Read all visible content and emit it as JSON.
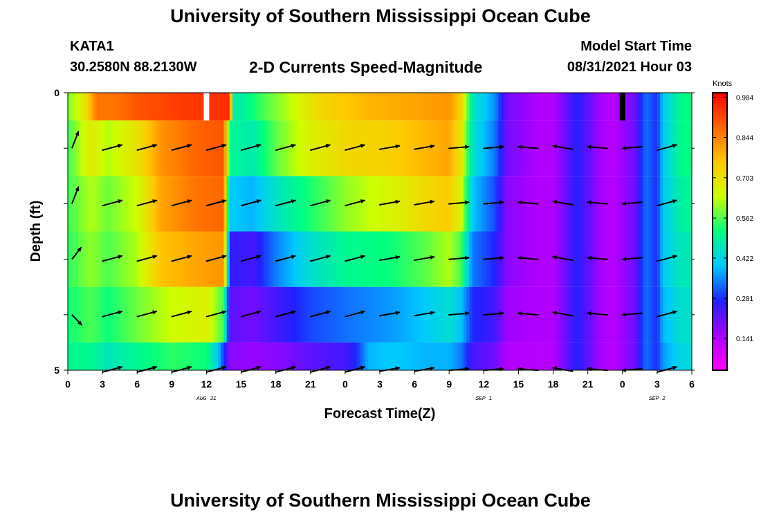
{
  "header": {
    "title": "University of Southern Mississippi Ocean Cube",
    "station_id": "KATA1",
    "station_coords": "30.2580N  88.2130W",
    "chart_title": "2-D Currents Speed-Magnitude",
    "model_start_label": "Model Start Time",
    "model_start_value": "08/31/2021 Hour 03"
  },
  "footer": {
    "title": "University of Southern Mississippi Ocean Cube"
  },
  "chart_data": {
    "type": "heatmap",
    "title": "2-D Currents Speed-Magnitude",
    "xlabel": "Forecast Time(Z)",
    "ylabel": "Depth (ft)",
    "x_tick_labels": [
      "0",
      "3",
      "6",
      "9",
      "12",
      "15",
      "18",
      "21",
      "0",
      "3",
      "6",
      "9",
      "12",
      "15",
      "18",
      "21",
      "0",
      "3",
      "6"
    ],
    "x_tick_hours": [
      0,
      3,
      6,
      9,
      12,
      15,
      18,
      21,
      24,
      27,
      30,
      33,
      36,
      39,
      42,
      45,
      48,
      51,
      54
    ],
    "x_range_hours": [
      0,
      54
    ],
    "date_labels": [
      {
        "label": "AUG 31",
        "hour": 12
      },
      {
        "label": "SEP 1",
        "hour": 36
      },
      {
        "label": "SEP 2",
        "hour": 51
      }
    ],
    "y_tick_labels": [
      "0",
      "5"
    ],
    "y_range": [
      0,
      5
    ],
    "colorbar": {
      "title": "Knots",
      "ticks": [
        "0.984",
        "0.844",
        "0.703",
        "0.562",
        "0.422",
        "0.281",
        "0.141"
      ],
      "tick_values": [
        0.984,
        0.844,
        0.703,
        0.562,
        0.422,
        0.281,
        0.141
      ],
      "range": [
        0.03,
        1.0
      ],
      "colors": [
        "#ff00ff",
        "#aa00ff",
        "#2020ff",
        "#00c8ff",
        "#00ff80",
        "#ccff00",
        "#ffc800",
        "#ff6600",
        "#ff0000"
      ]
    },
    "depth_layers": [
      {
        "name": "0.0-0.5",
        "keys": [
          [
            0,
            0.58
          ],
          [
            1.5,
            0.7
          ],
          [
            2.5,
            0.86
          ],
          [
            4,
            0.86
          ],
          [
            6,
            0.9
          ],
          [
            10,
            0.93
          ],
          [
            14,
            0.95
          ],
          [
            14.3,
            0.48
          ],
          [
            15,
            0.48
          ],
          [
            17,
            0.56
          ],
          [
            19,
            0.62
          ],
          [
            22,
            0.73
          ],
          [
            26,
            0.78
          ],
          [
            30,
            0.8
          ],
          [
            33,
            0.82
          ],
          [
            34,
            0.74
          ],
          [
            35,
            0.46
          ],
          [
            37,
            0.35
          ],
          [
            38,
            0.2
          ],
          [
            41,
            0.14
          ],
          [
            42,
            0.14
          ],
          [
            43,
            0.2
          ],
          [
            44,
            0.27
          ],
          [
            45,
            0.22
          ],
          [
            46,
            0.16
          ],
          [
            47,
            0.13
          ],
          [
            49,
            0.2
          ],
          [
            50,
            0.33
          ],
          [
            51,
            0.28
          ],
          [
            51.5,
            0.4
          ],
          [
            53,
            0.5
          ],
          [
            54,
            0.52
          ]
        ]
      },
      {
        "name": "0.5-1.5",
        "keys": [
          [
            0,
            0.55
          ],
          [
            2,
            0.68
          ],
          [
            3.5,
            0.62
          ],
          [
            6,
            0.7
          ],
          [
            8,
            0.82
          ],
          [
            11,
            0.88
          ],
          [
            13.5,
            0.9
          ],
          [
            14,
            0.5
          ],
          [
            16,
            0.47
          ],
          [
            18,
            0.57
          ],
          [
            21,
            0.67
          ],
          [
            24,
            0.72
          ],
          [
            28,
            0.74
          ],
          [
            31,
            0.78
          ],
          [
            33,
            0.8
          ],
          [
            34,
            0.7
          ],
          [
            35,
            0.45
          ],
          [
            37,
            0.33
          ],
          [
            38,
            0.2
          ],
          [
            41,
            0.14
          ],
          [
            42,
            0.14
          ],
          [
            43,
            0.2
          ],
          [
            44,
            0.27
          ],
          [
            45,
            0.22
          ],
          [
            46,
            0.16
          ],
          [
            47,
            0.13
          ],
          [
            49,
            0.2
          ],
          [
            50,
            0.33
          ],
          [
            51,
            0.28
          ],
          [
            51.5,
            0.4
          ],
          [
            53,
            0.5
          ],
          [
            54,
            0.52
          ]
        ]
      },
      {
        "name": "1.5-2.5",
        "keys": [
          [
            0,
            0.55
          ],
          [
            2,
            0.62
          ],
          [
            3.5,
            0.58
          ],
          [
            6,
            0.64
          ],
          [
            8,
            0.8
          ],
          [
            11,
            0.86
          ],
          [
            13.5,
            0.88
          ],
          [
            14,
            0.4
          ],
          [
            16,
            0.38
          ],
          [
            18,
            0.45
          ],
          [
            21,
            0.53
          ],
          [
            24,
            0.6
          ],
          [
            28,
            0.66
          ],
          [
            31,
            0.72
          ],
          [
            33,
            0.75
          ],
          [
            34,
            0.66
          ],
          [
            35,
            0.4
          ],
          [
            37,
            0.3
          ],
          [
            38,
            0.18
          ],
          [
            41,
            0.14
          ],
          [
            42,
            0.14
          ],
          [
            43,
            0.2
          ],
          [
            44,
            0.27
          ],
          [
            45,
            0.22
          ],
          [
            46,
            0.16
          ],
          [
            47,
            0.13
          ],
          [
            49,
            0.2
          ],
          [
            50,
            0.33
          ],
          [
            51,
            0.28
          ],
          [
            51.5,
            0.4
          ],
          [
            53,
            0.48
          ],
          [
            54,
            0.5
          ]
        ]
      },
      {
        "name": "2.5-3.5",
        "keys": [
          [
            0,
            0.54
          ],
          [
            2,
            0.6
          ],
          [
            3.5,
            0.56
          ],
          [
            6,
            0.62
          ],
          [
            8,
            0.76
          ],
          [
            11,
            0.8
          ],
          [
            13.5,
            0.82
          ],
          [
            14,
            0.26
          ],
          [
            16,
            0.24
          ],
          [
            18,
            0.34
          ],
          [
            21,
            0.44
          ],
          [
            24,
            0.5
          ],
          [
            28,
            0.52
          ],
          [
            31,
            0.57
          ],
          [
            33,
            0.62
          ],
          [
            34,
            0.56
          ],
          [
            35,
            0.34
          ],
          [
            37,
            0.27
          ],
          [
            38,
            0.18
          ],
          [
            41,
            0.14
          ],
          [
            42,
            0.14
          ],
          [
            43,
            0.2
          ],
          [
            44,
            0.27
          ],
          [
            45,
            0.22
          ],
          [
            46,
            0.16
          ],
          [
            47,
            0.13
          ],
          [
            49,
            0.2
          ],
          [
            50,
            0.33
          ],
          [
            51,
            0.28
          ],
          [
            51.5,
            0.4
          ],
          [
            53,
            0.46
          ],
          [
            54,
            0.47
          ]
        ]
      },
      {
        "name": "3.5-4.5",
        "keys": [
          [
            0,
            0.52
          ],
          [
            2,
            0.56
          ],
          [
            3.5,
            0.52
          ],
          [
            6,
            0.58
          ],
          [
            9,
            0.64
          ],
          [
            12,
            0.67
          ],
          [
            13.5,
            0.55
          ],
          [
            14,
            0.22
          ],
          [
            16,
            0.2
          ],
          [
            18,
            0.24
          ],
          [
            21,
            0.3
          ],
          [
            24,
            0.33
          ],
          [
            28,
            0.36
          ],
          [
            31,
            0.4
          ],
          [
            33,
            0.44
          ],
          [
            34,
            0.4
          ],
          [
            35,
            0.28
          ],
          [
            37,
            0.24
          ],
          [
            38,
            0.16
          ],
          [
            41,
            0.14
          ],
          [
            42,
            0.14
          ],
          [
            43,
            0.2
          ],
          [
            44,
            0.27
          ],
          [
            45,
            0.22
          ],
          [
            46,
            0.16
          ],
          [
            47,
            0.13
          ],
          [
            49,
            0.2
          ],
          [
            50,
            0.33
          ],
          [
            51,
            0.28
          ],
          [
            51.5,
            0.38
          ],
          [
            53,
            0.44
          ],
          [
            54,
            0.45
          ]
        ]
      },
      {
        "name": "4.5-5.0",
        "keys": [
          [
            0,
            0.5
          ],
          [
            2,
            0.5
          ],
          [
            3.5,
            0.46
          ],
          [
            6,
            0.5
          ],
          [
            9,
            0.54
          ],
          [
            12,
            0.52
          ],
          [
            13,
            0.4
          ],
          [
            14,
            0.18
          ],
          [
            16,
            0.17
          ],
          [
            18,
            0.18
          ],
          [
            21,
            0.22
          ],
          [
            24,
            0.24
          ],
          [
            25,
            0.28
          ],
          [
            26,
            0.38
          ],
          [
            28,
            0.4
          ],
          [
            31,
            0.38
          ],
          [
            33,
            0.38
          ],
          [
            34,
            0.34
          ],
          [
            35,
            0.24
          ],
          [
            37,
            0.2
          ],
          [
            38,
            0.14
          ],
          [
            41,
            0.13
          ],
          [
            42,
            0.14
          ],
          [
            43,
            0.2
          ],
          [
            44,
            0.27
          ],
          [
            45,
            0.22
          ],
          [
            46,
            0.16
          ],
          [
            47,
            0.13
          ],
          [
            49,
            0.2
          ],
          [
            50,
            0.33
          ],
          [
            51,
            0.28
          ],
          [
            51.5,
            0.36
          ],
          [
            53,
            0.42
          ],
          [
            54,
            0.43
          ]
        ]
      }
    ],
    "missing_marks": [
      {
        "hour": 12,
        "color": "#ffffff"
      },
      {
        "hour": 48,
        "color": "#000000"
      }
    ],
    "vector_rows": [
      {
        "depth": 1,
        "vectors": [
          {
            "hour": 0,
            "angle_deg": 55,
            "length": 0.9
          },
          {
            "hour": 3,
            "angle_deg": 15,
            "length": 1
          }
        ]
      },
      {
        "depth": 2,
        "vectors": [
          {
            "hour": 0,
            "angle_deg": 55,
            "length": 0.9
          },
          {
            "hour": 3,
            "angle_deg": 15,
            "length": 1
          }
        ]
      },
      {
        "depth": 3,
        "vectors": [
          {
            "hour": 0,
            "angle_deg": 35,
            "length": 0.9
          },
          {
            "hour": 3,
            "angle_deg": 15,
            "length": 1
          }
        ]
      },
      {
        "depth": 4,
        "vectors": [
          {
            "hour": 0,
            "angle_deg": -30,
            "length": 0.9
          },
          {
            "hour": 3,
            "angle_deg": 15,
            "length": 1
          }
        ]
      },
      {
        "depth": 5,
        "vectors": [
          {
            "hour": 3,
            "angle_deg": 15,
            "length": 1
          }
        ]
      }
    ],
    "vector_series": [
      {
        "hour": 3,
        "angle_deg": 15
      },
      {
        "hour": 6,
        "angle_deg": 15
      },
      {
        "hour": 9,
        "angle_deg": 15
      },
      {
        "hour": 12,
        "angle_deg": 15
      },
      {
        "hour": 15,
        "angle_deg": 15
      },
      {
        "hour": 18,
        "angle_deg": 15
      },
      {
        "hour": 21,
        "angle_deg": 15
      },
      {
        "hour": 24,
        "angle_deg": 15
      },
      {
        "hour": 27,
        "angle_deg": 10
      },
      {
        "hour": 30,
        "angle_deg": 10
      },
      {
        "hour": 33,
        "angle_deg": 5
      },
      {
        "hour": 36,
        "angle_deg": 5
      },
      {
        "hour": 39,
        "angle_deg": 175
      },
      {
        "hour": 42,
        "angle_deg": 170
      },
      {
        "hour": 45,
        "angle_deg": 175
      },
      {
        "hour": 48,
        "angle_deg": 185
      },
      {
        "hour": 51,
        "angle_deg": 15
      }
    ]
  }
}
